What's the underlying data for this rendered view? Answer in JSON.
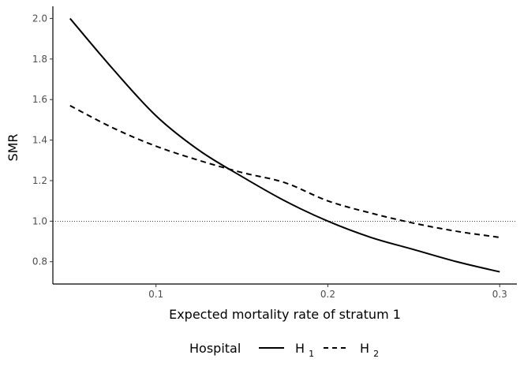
{
  "chart_data": {
    "type": "line",
    "title": "",
    "xlabel": "Expected mortality rate of stratum 1",
    "ylabel": "SMR",
    "xlim": [
      0.04,
      0.31
    ],
    "ylim": [
      0.69,
      2.06
    ],
    "x_ticks": [
      0.1,
      0.2,
      0.3
    ],
    "x_tick_labels": [
      "0.1",
      "0.2",
      "0.3"
    ],
    "y_ticks": [
      0.8,
      1.0,
      1.2,
      1.4,
      1.6,
      1.8,
      2.0
    ],
    "y_tick_labels": [
      "0.8",
      "1.0",
      "1.2",
      "1.4",
      "1.6",
      "1.8",
      "2.0"
    ],
    "grid": false,
    "reference_line": {
      "y": 1.0,
      "style": "dotted"
    },
    "legend": {
      "title": "Hospital",
      "position": "bottom",
      "entries": [
        {
          "base": "H",
          "subscript": "1",
          "linetype": "solid"
        },
        {
          "base": "H",
          "subscript": "2",
          "linetype": "dashed"
        }
      ]
    },
    "x": [
      0.05,
      0.075,
      0.1,
      0.125,
      0.15,
      0.175,
      0.2,
      0.225,
      0.25,
      0.275,
      0.3
    ],
    "series": [
      {
        "name": "H1",
        "linetype": "solid",
        "values": [
          2.0,
          1.75,
          1.52,
          1.35,
          1.22,
          1.1,
          1.0,
          0.92,
          0.86,
          0.8,
          0.75
        ]
      },
      {
        "name": "H2",
        "linetype": "dashed",
        "values": [
          1.57,
          1.46,
          1.37,
          1.3,
          1.24,
          1.19,
          1.1,
          1.04,
          0.99,
          0.95,
          0.92
        ]
      }
    ],
    "line_color": "#000000"
  }
}
